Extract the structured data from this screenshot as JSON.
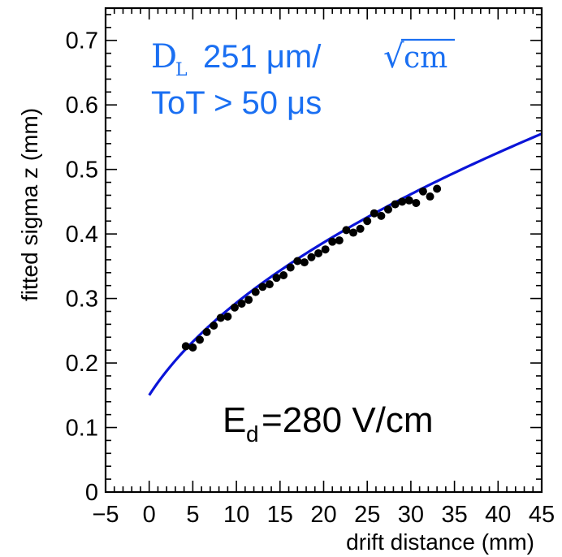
{
  "chart_data": {
    "type": "scatter",
    "xlabel": "drift distance (mm)",
    "ylabel": "fitted sigma z (mm)",
    "xlim": [
      -5,
      45
    ],
    "ylim": [
      0,
      0.75
    ],
    "x_ticks": [
      "−5",
      "0",
      "5",
      "10",
      "15",
      "20",
      "25",
      "30",
      "35",
      "40",
      "45"
    ],
    "x_tick_values": [
      -5,
      0,
      5,
      10,
      15,
      20,
      25,
      30,
      35,
      40,
      45
    ],
    "y_ticks": [
      "0",
      "0.1",
      "0.2",
      "0.3",
      "0.4",
      "0.5",
      "0.6",
      "0.7"
    ],
    "y_tick_values": [
      0,
      0.1,
      0.2,
      0.3,
      0.4,
      0.5,
      0.6,
      0.7
    ],
    "grid": false,
    "series": [
      {
        "kind": "points",
        "color": "#000000",
        "points": [
          {
            "x": 4.2,
            "y": 0.226
          },
          {
            "x": 5.0,
            "y": 0.224
          },
          {
            "x": 5.8,
            "y": 0.236
          },
          {
            "x": 6.6,
            "y": 0.248
          },
          {
            "x": 7.4,
            "y": 0.258
          },
          {
            "x": 8.2,
            "y": 0.27
          },
          {
            "x": 9.0,
            "y": 0.272
          },
          {
            "x": 9.8,
            "y": 0.286
          },
          {
            "x": 10.6,
            "y": 0.292
          },
          {
            "x": 11.4,
            "y": 0.298
          },
          {
            "x": 12.2,
            "y": 0.31
          },
          {
            "x": 13.0,
            "y": 0.318
          },
          {
            "x": 13.8,
            "y": 0.322
          },
          {
            "x": 14.6,
            "y": 0.332
          },
          {
            "x": 15.4,
            "y": 0.336
          },
          {
            "x": 16.2,
            "y": 0.348
          },
          {
            "x": 17.0,
            "y": 0.358
          },
          {
            "x": 17.8,
            "y": 0.356
          },
          {
            "x": 18.6,
            "y": 0.364
          },
          {
            "x": 19.4,
            "y": 0.37
          },
          {
            "x": 20.2,
            "y": 0.376
          },
          {
            "x": 21.0,
            "y": 0.388
          },
          {
            "x": 21.8,
            "y": 0.39
          },
          {
            "x": 22.6,
            "y": 0.406
          },
          {
            "x": 23.4,
            "y": 0.402
          },
          {
            "x": 24.2,
            "y": 0.408
          },
          {
            "x": 25.0,
            "y": 0.42
          },
          {
            "x": 25.8,
            "y": 0.432
          },
          {
            "x": 26.6,
            "y": 0.428
          },
          {
            "x": 27.4,
            "y": 0.438
          },
          {
            "x": 28.2,
            "y": 0.446
          },
          {
            "x": 29.0,
            "y": 0.45
          },
          {
            "x": 29.8,
            "y": 0.452
          },
          {
            "x": 30.6,
            "y": 0.448
          },
          {
            "x": 31.4,
            "y": 0.466
          },
          {
            "x": 32.2,
            "y": 0.458
          },
          {
            "x": 33.0,
            "y": 0.47
          }
        ]
      },
      {
        "kind": "fit",
        "color": "#0a14d8",
        "function": "sqrt(a^2 + b^2 * x)",
        "params": {
          "a": 0.15,
          "b": 0.0797
        },
        "x_range": [
          0,
          45
        ]
      }
    ],
    "annotations": {
      "diffusion_symbol": "D",
      "diffusion_subscript": "L",
      "diffusion_value": "251 μm/",
      "diffusion_sqrt_symbol": "√",
      "diffusion_sqrt_unit": "cm",
      "tot_text": "ToT > 50 μs",
      "field_symbol": "E",
      "field_subscript": "d",
      "field_value": "=280 V/cm",
      "text_color": "#1a6ff2"
    }
  }
}
